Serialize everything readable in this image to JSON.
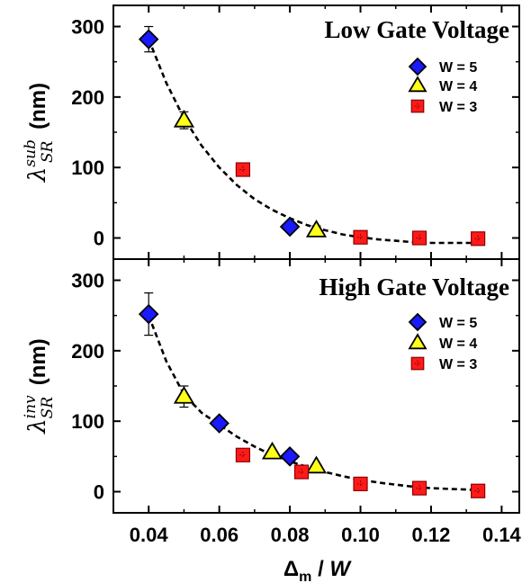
{
  "chart_data": {
    "type": "scatter",
    "xlabel": "Δm / W",
    "x_ticks": [
      "0.04",
      "0.06",
      "0.08",
      "0.10",
      "0.12",
      "0.14"
    ],
    "xlim": [
      0.03,
      0.145
    ],
    "legend_position": "right",
    "panels": [
      {
        "title": "Low Gate Voltage",
        "ylabel": "λSR sub (nm)",
        "ylabel_main": "λ",
        "ylabel_sup": "sub",
        "ylabel_sub": "SR",
        "ylabel_unit": " (nm)",
        "ylim": [
          -30,
          330
        ],
        "y_ticks": [
          "0",
          "100",
          "200",
          "300"
        ],
        "series": [
          {
            "name": "W = 5",
            "marker": "diamond",
            "color": "#1a1aff",
            "points": [
              {
                "x": 0.04,
                "y": 282,
                "err": 18
              },
              {
                "x": 0.08,
                "y": 16,
                "err": 5
              }
            ]
          },
          {
            "name": "W = 4",
            "marker": "triangle",
            "color": "#ffff1a",
            "points": [
              {
                "x": 0.05,
                "y": 167,
                "err": 12
              },
              {
                "x": 0.0875,
                "y": 11,
                "err": 6
              }
            ]
          },
          {
            "name": "W = 3",
            "marker": "square",
            "color": "#ff1a1a",
            "points": [
              {
                "x": 0.0667,
                "y": 97,
                "err": 0
              },
              {
                "x": 0.1,
                "y": 1,
                "err": 0
              },
              {
                "x": 0.1167,
                "y": 0,
                "err": 0
              },
              {
                "x": 0.1333,
                "y": -1,
                "err": 0
              }
            ]
          }
        ],
        "fit": [
          [
            0.04,
            282
          ],
          [
            0.045,
            220
          ],
          [
            0.05,
            170
          ],
          [
            0.055,
            131
          ],
          [
            0.06,
            100
          ],
          [
            0.065,
            75
          ],
          [
            0.07,
            55
          ],
          [
            0.075,
            40
          ],
          [
            0.08,
            28
          ],
          [
            0.085,
            18
          ],
          [
            0.09,
            11
          ],
          [
            0.095,
            5
          ],
          [
            0.1,
            1
          ],
          [
            0.105,
            -2
          ],
          [
            0.11,
            -4
          ],
          [
            0.115,
            -6
          ],
          [
            0.12,
            -7
          ],
          [
            0.125,
            -7
          ],
          [
            0.13,
            -7
          ],
          [
            0.133,
            -7
          ]
        ]
      },
      {
        "title": "High Gate Voltage",
        "ylabel": "λSR inv (nm)",
        "ylabel_main": "λ",
        "ylabel_sup": "inv",
        "ylabel_sub": "SR",
        "ylabel_unit": " (nm)",
        "ylim": [
          -30,
          330
        ],
        "y_ticks": [
          "0",
          "100",
          "200",
          "300"
        ],
        "series": [
          {
            "name": "W = 5",
            "marker": "diamond",
            "color": "#1a1aff",
            "points": [
              {
                "x": 0.04,
                "y": 252,
                "err": 30
              },
              {
                "x": 0.06,
                "y": 97,
                "err": 0
              },
              {
                "x": 0.08,
                "y": 50,
                "err": 0
              }
            ]
          },
          {
            "name": "W = 4",
            "marker": "triangle",
            "color": "#ffff1a",
            "points": [
              {
                "x": 0.05,
                "y": 135,
                "err": 15
              },
              {
                "x": 0.075,
                "y": 56,
                "err": 0
              },
              {
                "x": 0.0875,
                "y": 36,
                "err": 0
              }
            ]
          },
          {
            "name": "W = 3",
            "marker": "square",
            "color": "#ff1a1a",
            "points": [
              {
                "x": 0.0667,
                "y": 52,
                "err": 0
              },
              {
                "x": 0.0833,
                "y": 28,
                "err": 0
              },
              {
                "x": 0.1,
                "y": 11,
                "err": 0
              },
              {
                "x": 0.1167,
                "y": 5,
                "err": 0
              },
              {
                "x": 0.1333,
                "y": 1,
                "err": 0
              }
            ]
          }
        ],
        "fit": [
          [
            0.04,
            250
          ],
          [
            0.045,
            185
          ],
          [
            0.05,
            138
          ],
          [
            0.055,
            112
          ],
          [
            0.06,
            95
          ],
          [
            0.065,
            78
          ],
          [
            0.07,
            64
          ],
          [
            0.075,
            52
          ],
          [
            0.08,
            43
          ],
          [
            0.085,
            35
          ],
          [
            0.09,
            28
          ],
          [
            0.095,
            22
          ],
          [
            0.1,
            17
          ],
          [
            0.105,
            13
          ],
          [
            0.11,
            10
          ],
          [
            0.115,
            7
          ],
          [
            0.12,
            5
          ],
          [
            0.125,
            4
          ],
          [
            0.13,
            3
          ],
          [
            0.133,
            2
          ]
        ]
      }
    ]
  }
}
